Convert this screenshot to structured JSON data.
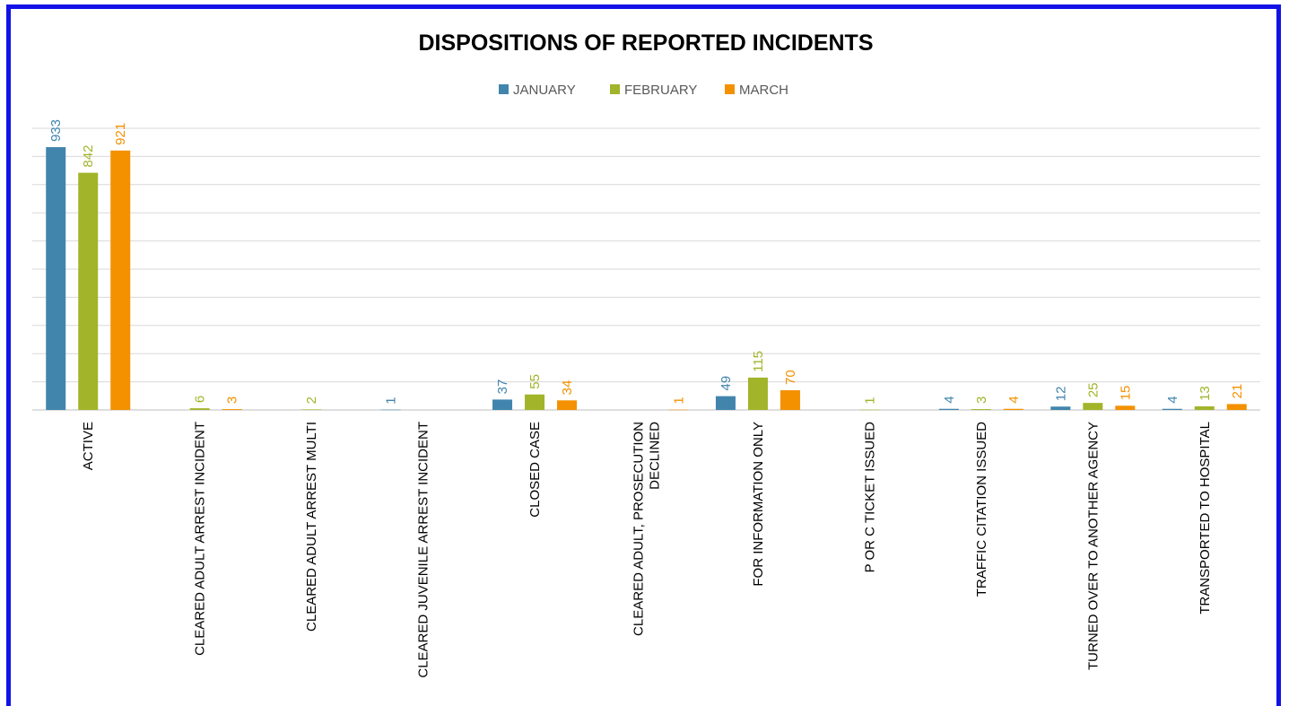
{
  "chart_data": {
    "type": "bar",
    "title": "DISPOSITIONS OF REPORTED INCIDENTS",
    "xlabel": "",
    "ylabel": "",
    "ylim": [
      0,
      1000
    ],
    "grid": true,
    "legend_position": "top",
    "categories": [
      [
        "ACTIVE"
      ],
      [
        "CLEARED ADULT ARREST INCIDENT"
      ],
      [
        "CLEARED ADULT ARREST MULTI"
      ],
      [
        "CLEARED JUVENILE ARREST INCIDENT"
      ],
      [
        "CLOSED CASE"
      ],
      [
        "CLEARED ADULT, PROSECUTION",
        "DECLINED"
      ],
      [
        "FOR INFORMATION ONLY"
      ],
      [
        "P OR C TICKET ISSUED"
      ],
      [
        "TRAFFIC CITATION ISSUED"
      ],
      [
        "TURNED OVER TO ANOTHER AGENCY"
      ],
      [
        "TRANSPORTED TO HOSPITAL"
      ]
    ],
    "series": [
      {
        "name": "JANUARY",
        "color": "#4185ad",
        "values": [
          933,
          null,
          null,
          1,
          37,
          null,
          49,
          null,
          4,
          12,
          4
        ]
      },
      {
        "name": "FEBRUARY",
        "color": "#a2b429",
        "values": [
          842,
          6,
          2,
          null,
          55,
          null,
          115,
          1,
          3,
          25,
          13
        ]
      },
      {
        "name": "MARCH",
        "color": "#f39100",
        "values": [
          921,
          3,
          null,
          null,
          34,
          1,
          70,
          null,
          4,
          15,
          21
        ]
      }
    ]
  }
}
